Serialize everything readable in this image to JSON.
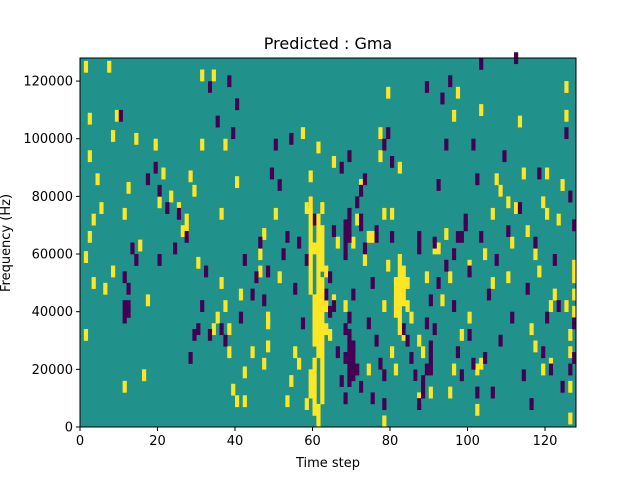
{
  "chart_data": {
    "type": "heatmap",
    "title": "Predicted : Gma",
    "xlabel": "Time step",
    "ylabel": "Frequency (Hz)",
    "xlim": [
      0,
      128
    ],
    "ylim": [
      0,
      128000
    ],
    "x_ticks": [
      0,
      20,
      40,
      60,
      80,
      100,
      120
    ],
    "y_ticks": [
      0,
      20000,
      40000,
      60000,
      80000,
      100000,
      120000
    ],
    "grid": false,
    "legend": "none",
    "colors": {
      "background": "#21918c",
      "high": "#fde725",
      "low": "#440154"
    },
    "cells": {
      "high": [
        [
          1,
          123000
        ],
        [
          1,
          57000
        ],
        [
          1,
          30000
        ],
        [
          2,
          64000
        ],
        [
          2,
          105000
        ],
        [
          2,
          92000
        ],
        [
          3,
          70000
        ],
        [
          3,
          48000
        ],
        [
          4,
          84000
        ],
        [
          5,
          74000
        ],
        [
          6,
          46000
        ],
        [
          7,
          123000
        ],
        [
          8,
          99000
        ],
        [
          8,
          52000
        ],
        [
          9,
          106000
        ],
        [
          11,
          72000
        ],
        [
          11,
          12000
        ],
        [
          12,
          81000
        ],
        [
          14,
          98000
        ],
        [
          15,
          61000
        ],
        [
          16,
          16000
        ],
        [
          17,
          42000
        ],
        [
          19,
          96000
        ],
        [
          20,
          76000
        ],
        [
          21,
          86000
        ],
        [
          23,
          78000
        ],
        [
          25,
          74000
        ],
        [
          26,
          66000
        ],
        [
          27,
          66000
        ],
        [
          27,
          70000
        ],
        [
          28,
          85000
        ],
        [
          29,
          80000
        ],
        [
          30,
          55000
        ],
        [
          31,
          120000
        ],
        [
          31,
          96000
        ],
        [
          33,
          116000
        ],
        [
          34,
          120000
        ],
        [
          34,
          32000
        ],
        [
          35,
          36000
        ],
        [
          36,
          72000
        ],
        [
          36,
          48000
        ],
        [
          37,
          96000
        ],
        [
          37,
          40000
        ],
        [
          38,
          32000
        ],
        [
          38,
          24000
        ],
        [
          39,
          11000
        ],
        [
          40,
          7000
        ],
        [
          40,
          83000
        ],
        [
          41,
          44000
        ],
        [
          42,
          17000
        ],
        [
          42,
          7000
        ],
        [
          44,
          24000
        ],
        [
          46,
          52000
        ],
        [
          46,
          58000
        ],
        [
          47,
          20000
        ],
        [
          47,
          65000
        ],
        [
          48,
          34000
        ],
        [
          48,
          36000
        ],
        [
          48,
          26000
        ],
        [
          50,
          72000
        ],
        [
          51,
          50000
        ],
        [
          53,
          7000
        ],
        [
          54,
          14000
        ],
        [
          55,
          24000
        ],
        [
          56,
          20000
        ],
        [
          57,
          100000
        ],
        [
          58,
          74000
        ],
        [
          58,
          6000
        ],
        [
          59,
          85000
        ],
        [
          60,
          60000
        ],
        [
          60,
          20000
        ],
        [
          61,
          95000
        ],
        [
          62,
          74000
        ],
        [
          63,
          40000
        ],
        [
          64,
          30000
        ],
        [
          65,
          42000
        ],
        [
          70,
          62000
        ],
        [
          72,
          82000
        ],
        [
          74,
          64000
        ],
        [
          77,
          92000
        ],
        [
          78,
          40000
        ],
        [
          78,
          72000
        ],
        [
          79,
          114000
        ],
        [
          80,
          24000
        ],
        [
          81,
          18000
        ],
        [
          83,
          30000
        ],
        [
          84,
          40000
        ],
        [
          86,
          16000
        ],
        [
          88,
          24000
        ],
        [
          89,
          50000
        ],
        [
          90,
          10000
        ],
        [
          93,
          42000
        ],
        [
          94,
          65000
        ],
        [
          95,
          50000
        ],
        [
          96,
          106000
        ],
        [
          97,
          114000
        ],
        [
          100,
          36000
        ],
        [
          102,
          18000
        ],
        [
          103,
          108000
        ],
        [
          104,
          58000
        ],
        [
          106,
          48000
        ],
        [
          107,
          84000
        ],
        [
          108,
          80000
        ],
        [
          110,
          76000
        ],
        [
          111,
          62000
        ],
        [
          112,
          74000
        ],
        [
          113,
          104000
        ],
        [
          116,
          32000
        ],
        [
          117,
          58000
        ],
        [
          118,
          52000
        ],
        [
          119,
          76000
        ],
        [
          120,
          86000
        ],
        [
          120,
          72000
        ],
        [
          121,
          20000
        ],
        [
          122,
          44000
        ],
        [
          125,
          40000
        ],
        [
          126,
          30000
        ],
        [
          126,
          24000
        ],
        [
          127,
          38000
        ],
        [
          127,
          44000
        ],
        [
          127,
          50000
        ],
        [
          127,
          54000
        ],
        [
          126,
          1000
        ],
        [
          126,
          12000
        ],
        [
          124,
          82000
        ],
        [
          123,
          70000
        ],
        [
          125,
          116000
        ],
        [
          125,
          106000
        ],
        [
          121,
          40000
        ],
        [
          119,
          18000
        ],
        [
          117,
          26000
        ],
        [
          115,
          66000
        ],
        [
          114,
          86000
        ],
        [
          110,
          50000
        ],
        [
          106,
          72000
        ],
        [
          103,
          20000
        ],
        [
          102,
          4000
        ],
        [
          100,
          54000
        ],
        [
          98,
          30000
        ],
        [
          96,
          18000
        ],
        [
          95,
          10000
        ],
        [
          92,
          60000
        ],
        [
          91,
          60000
        ],
        [
          87,
          28000
        ],
        [
          87,
          8000
        ],
        [
          85,
          36000
        ],
        [
          84,
          48000
        ],
        [
          82,
          88000
        ],
        [
          80,
          72000
        ],
        [
          79,
          54000
        ],
        [
          78,
          0
        ],
        [
          77,
          100000
        ],
        [
          75,
          64000
        ],
        [
          74,
          18000
        ],
        [
          73,
          56000
        ],
        [
          71,
          70000
        ],
        [
          69,
          68000
        ],
        [
          68,
          40000
        ],
        [
          66,
          62000
        ],
        [
          65,
          90000
        ],
        [
          63,
          32000
        ],
        [
          63,
          52000
        ]
      ],
      "low": [
        [
          10,
          106000
        ],
        [
          11,
          50000
        ],
        [
          11,
          36000
        ],
        [
          12,
          46000
        ],
        [
          13,
          60000
        ],
        [
          14,
          56000
        ],
        [
          17,
          84000
        ],
        [
          19,
          88000
        ],
        [
          20,
          80000
        ],
        [
          20,
          56000
        ],
        [
          22,
          74000
        ],
        [
          24,
          60000
        ],
        [
          25,
          72000
        ],
        [
          27,
          64000
        ],
        [
          28,
          22000
        ],
        [
          29,
          30000
        ],
        [
          30,
          32000
        ],
        [
          31,
          40000
        ],
        [
          32,
          52000
        ],
        [
          33,
          116000
        ],
        [
          33,
          30000
        ],
        [
          35,
          104000
        ],
        [
          36,
          32000
        ],
        [
          37,
          28000
        ],
        [
          38,
          118000
        ],
        [
          39,
          100000
        ],
        [
          40,
          110000
        ],
        [
          41,
          36000
        ],
        [
          42,
          56000
        ],
        [
          44,
          44000
        ],
        [
          45,
          50000
        ],
        [
          46,
          62000
        ],
        [
          47,
          42000
        ],
        [
          48,
          52000
        ],
        [
          49,
          86000
        ],
        [
          50,
          96000
        ],
        [
          51,
          82000
        ],
        [
          52,
          58000
        ],
        [
          53,
          64000
        ],
        [
          54,
          98000
        ],
        [
          55,
          46000
        ],
        [
          56,
          62000
        ],
        [
          57,
          34000
        ],
        [
          58,
          56000
        ],
        [
          59,
          76000
        ],
        [
          60,
          70000
        ],
        [
          62,
          48000
        ],
        [
          63,
          44000
        ],
        [
          64,
          38000
        ],
        [
          65,
          40000
        ],
        [
          66,
          24000
        ],
        [
          67,
          14000
        ],
        [
          68,
          8000
        ],
        [
          68,
          22000
        ],
        [
          69,
          30000
        ],
        [
          69,
          36000
        ],
        [
          70,
          44000
        ],
        [
          71,
          76000
        ],
        [
          72,
          80000
        ],
        [
          73,
          60000
        ],
        [
          74,
          34000
        ],
        [
          75,
          48000
        ],
        [
          76,
          28000
        ],
        [
          77,
          20000
        ],
        [
          78,
          16000
        ],
        [
          79,
          100000
        ],
        [
          80,
          90000
        ],
        [
          80,
          64000
        ],
        [
          81,
          46000
        ],
        [
          82,
          40000
        ],
        [
          83,
          32000
        ],
        [
          84,
          28000
        ],
        [
          85,
          22000
        ],
        [
          86,
          16000
        ],
        [
          87,
          6000
        ],
        [
          88,
          10000
        ],
        [
          89,
          34000
        ],
        [
          90,
          42000
        ],
        [
          91,
          62000
        ],
        [
          92,
          82000
        ],
        [
          93,
          112000
        ],
        [
          94,
          96000
        ],
        [
          95,
          118000
        ],
        [
          96,
          40000
        ],
        [
          97,
          24000
        ],
        [
          98,
          16000
        ],
        [
          99,
          70000
        ],
        [
          100,
          52000
        ],
        [
          101,
          96000
        ],
        [
          102,
          84000
        ],
        [
          103,
          64000
        ],
        [
          104,
          22000
        ],
        [
          105,
          44000
        ],
        [
          106,
          10000
        ],
        [
          107,
          56000
        ],
        [
          108,
          28000
        ],
        [
          109,
          92000
        ],
        [
          110,
          66000
        ],
        [
          111,
          36000
        ],
        [
          112,
          126000
        ],
        [
          113,
          74000
        ],
        [
          114,
          16000
        ],
        [
          115,
          46000
        ],
        [
          116,
          6000
        ],
        [
          117,
          62000
        ],
        [
          118,
          86000
        ],
        [
          119,
          24000
        ],
        [
          120,
          36000
        ],
        [
          121,
          18000
        ],
        [
          122,
          56000
        ],
        [
          123,
          40000
        ],
        [
          124,
          12000
        ],
        [
          125,
          100000
        ],
        [
          126,
          78000
        ],
        [
          127,
          68000
        ],
        [
          127,
          34000
        ],
        [
          127,
          22000
        ],
        [
          126,
          18000
        ],
        [
          103,
          124000
        ],
        [
          89,
          116000
        ],
        [
          78,
          96000
        ],
        [
          73,
          84000
        ],
        [
          69,
          92000
        ],
        [
          67,
          88000
        ],
        [
          65,
          66000
        ],
        [
          64,
          50000
        ],
        [
          62,
          42000
        ],
        [
          61,
          36000
        ],
        [
          68,
          32000
        ],
        [
          70,
          26000
        ],
        [
          71,
          18000
        ],
        [
          72,
          12000
        ],
        [
          75,
          8000
        ],
        [
          78,
          6000
        ],
        [
          88,
          14000
        ],
        [
          90,
          26000
        ],
        [
          91,
          32000
        ],
        [
          92,
          48000
        ],
        [
          94,
          54000
        ],
        [
          96,
          58000
        ],
        [
          98,
          64000
        ],
        [
          99,
          68000
        ],
        [
          100,
          30000
        ],
        [
          101,
          20000
        ],
        [
          102,
          10000
        ]
      ],
      "high_cols": [
        {
          "x": 60,
          "y0": 4000,
          "y1": 24000
        },
        {
          "x": 61,
          "y0": 24000,
          "y1": 64000
        },
        {
          "x": 62,
          "y0": 8000,
          "y1": 52000
        },
        {
          "x": 59,
          "y0": 46000,
          "y1": 80000
        },
        {
          "x": 61,
          "y0": 64000,
          "y1": 74000
        },
        {
          "x": 62,
          "y0": 54000,
          "y1": 70000
        },
        {
          "x": 60,
          "y0": 28000,
          "y1": 46000
        },
        {
          "x": 82,
          "y0": 32000,
          "y1": 60000
        },
        {
          "x": 81,
          "y0": 38000,
          "y1": 52000
        },
        {
          "x": 83,
          "y0": 42000,
          "y1": 56000
        },
        {
          "x": 61,
          "y0": 0,
          "y1": 8000
        },
        {
          "x": 59,
          "y0": 10000,
          "y1": 20000
        }
      ],
      "low_cols": [
        {
          "x": 69,
          "y0": 14000,
          "y1": 30000
        },
        {
          "x": 70,
          "y0": 16000,
          "y1": 28000
        },
        {
          "x": 68,
          "y0": 58000,
          "y1": 72000
        },
        {
          "x": 69,
          "y0": 64000,
          "y1": 76000
        },
        {
          "x": 90,
          "y0": 18000,
          "y1": 26000
        },
        {
          "x": 89,
          "y0": 18000,
          "y1": 22000
        },
        {
          "x": 12,
          "y0": 38000,
          "y1": 44000
        },
        {
          "x": 11,
          "y0": 40000,
          "y1": 44000
        },
        {
          "x": 87,
          "y0": 60000,
          "y1": 68000
        },
        {
          "x": 97,
          "y0": 64000,
          "y1": 68000
        },
        {
          "x": 72,
          "y0": 68000,
          "y1": 74000
        },
        {
          "x": 76,
          "y0": 64000,
          "y1": 70000
        }
      ]
    }
  }
}
